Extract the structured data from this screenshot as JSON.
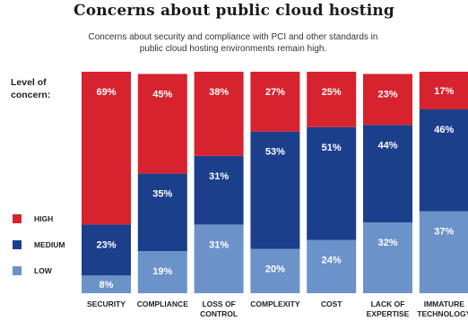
{
  "title": "Concerns about public cloud hosting",
  "subtitle_lines": [
    "Concerns about security and compliance with PCI and other standards in",
    "public cloud hosting environments remain high."
  ],
  "level_label_lines": [
    "Level of",
    "concern:"
  ],
  "legend": [
    {
      "label": "HIGH",
      "color": "#d6232e"
    },
    {
      "label": "MEDIUM",
      "color": "#1c3f8c"
    },
    {
      "label": "LOW",
      "color": "#6b93c9"
    }
  ],
  "chart_data": {
    "type": "bar",
    "stacked": true,
    "categories": [
      [
        "SECURITY"
      ],
      [
        "COMPLIANCE"
      ],
      [
        "LOSS OF",
        "CONTROL"
      ],
      [
        "COMPLEXITY"
      ],
      [
        "COST"
      ],
      [
        "LACK OF",
        "EXPERTISE"
      ],
      [
        "IMMATURE",
        "TECHNOLOGY"
      ]
    ],
    "series": [
      {
        "name": "LOW",
        "color": "#6b93c9",
        "values": [
          8,
          19,
          31,
          20,
          24,
          32,
          37
        ]
      },
      {
        "name": "MEDIUM",
        "color": "#1c3f8c",
        "values": [
          23,
          35,
          31,
          53,
          51,
          44,
          46
        ]
      },
      {
        "name": "HIGH",
        "color": "#d6232e",
        "values": [
          69,
          45,
          38,
          27,
          25,
          23,
          17
        ]
      }
    ],
    "value_suffix": "%",
    "ylim": [
      0,
      100
    ]
  }
}
